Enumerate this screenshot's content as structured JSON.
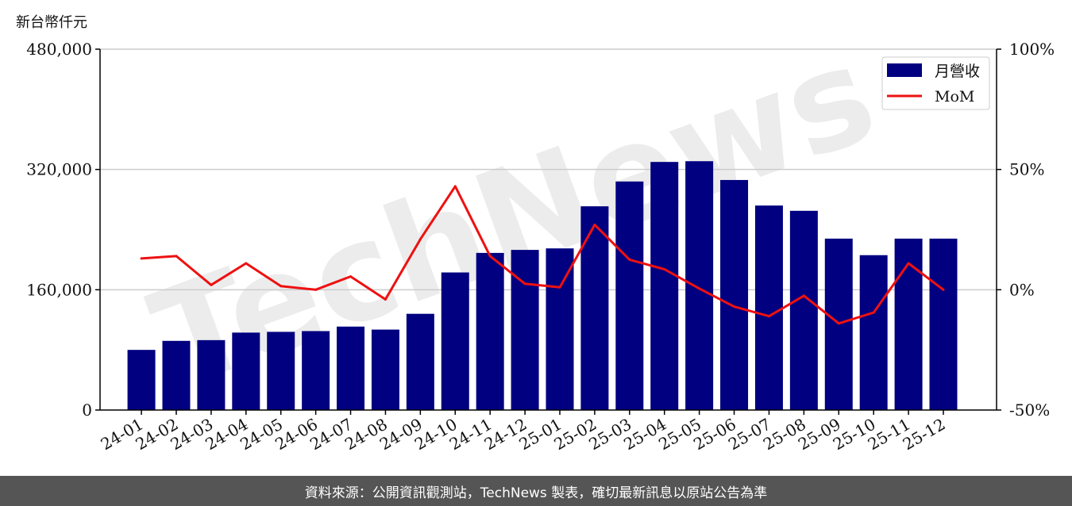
{
  "unit_label": "新台幣仟元",
  "footer_text": "資料來源：公開資訊觀測站，TechNews 製表，確切最新訊息以原站公告為準",
  "watermark": "TechNews",
  "colors": {
    "bar": "#000080",
    "line": "#ee1111",
    "grid": "#cccccc",
    "footer_bg": "#555555"
  },
  "chart_data": {
    "type": "bar",
    "title": "",
    "xlabel": "",
    "ylabel": "新台幣仟元",
    "categories": [
      "24-01",
      "24-02",
      "24-03",
      "24-04",
      "24-05",
      "24-06",
      "24-07",
      "24-08",
      "24-09",
      "24-10",
      "24-11",
      "24-12",
      "25-01",
      "25-02",
      "25-03",
      "25-04",
      "25-05",
      "25-06",
      "25-07",
      "25-08",
      "25-09",
      "25-10",
      "25-11",
      "25-12"
    ],
    "series": [
      {
        "name": "月營收",
        "type": "bar",
        "axis": "left",
        "values": [
          80000,
          92000,
          93000,
          103000,
          104000,
          105000,
          111000,
          107000,
          128000,
          183000,
          209000,
          213000,
          215000,
          271000,
          304000,
          330000,
          331000,
          306000,
          272000,
          265000,
          228000,
          206000,
          228000,
          228000
        ]
      },
      {
        "name": "MoM",
        "type": "line",
        "axis": "right",
        "values": [
          13,
          14,
          2,
          11,
          1.5,
          0,
          5.5,
          -4,
          21,
          43,
          14,
          2.5,
          1,
          27,
          12.5,
          8.5,
          0.5,
          -7,
          -11,
          -2.5,
          -14,
          -9.5,
          11,
          0
        ]
      }
    ],
    "y_left": {
      "ylim": [
        0,
        480000
      ],
      "ticks": [
        0,
        160000,
        320000,
        480000
      ],
      "tick_labels": [
        "0",
        "160,000",
        "320,000",
        "480,000"
      ]
    },
    "y_right": {
      "ylim": [
        -50,
        100
      ],
      "ticks": [
        -50,
        0,
        50,
        100
      ],
      "tick_labels": [
        "-50%",
        "0%",
        "50%",
        "100%"
      ]
    },
    "grid": "horizontal",
    "legend": "top-right"
  }
}
